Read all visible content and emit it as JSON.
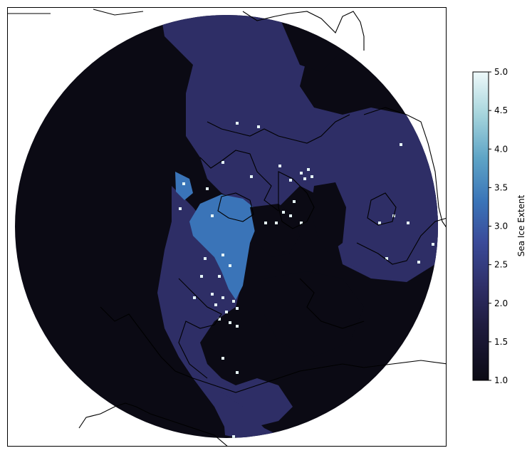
{
  "chart_data": {
    "type": "heatmap",
    "projection": "north-polar-stereographic",
    "colormap": "icefire-like (black → dark blue → blue → light cyan/white)",
    "colorbar": {
      "label": "Sea Ice Extent",
      "range": [
        1.0,
        5.0
      ],
      "ticks": [
        "1.0",
        "1.5",
        "2.0",
        "2.5",
        "3.0",
        "3.5",
        "4.0",
        "4.5",
        "5.0"
      ],
      "tick_values": [
        1.0,
        1.5,
        2.0,
        2.5,
        3.0,
        3.5,
        4.0,
        4.5,
        5.0
      ]
    },
    "dominant_values": {
      "open_background": 1.0,
      "land_and_pack_regions": 2.0,
      "central_high_region": 3.0,
      "scattered_maxima": 5.0
    }
  },
  "colors": {
    "low": "#0b0a14",
    "mid": "#2e2e66",
    "high": "#3a74b8",
    "max": "#e6f6f7"
  }
}
